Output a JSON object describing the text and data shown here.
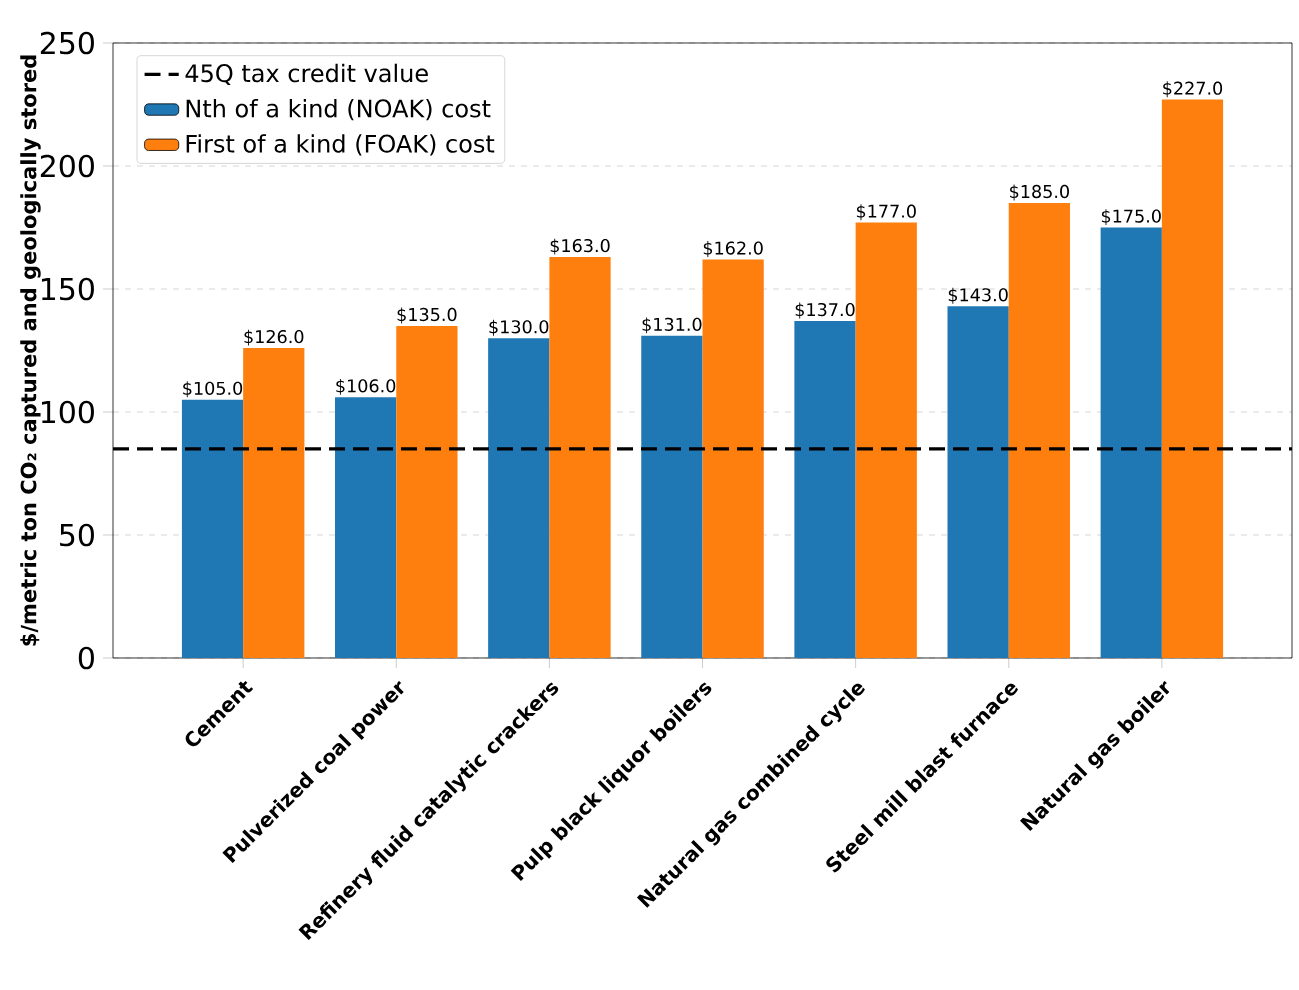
{
  "chart_data": {
    "type": "bar",
    "ylabel": "$/metric ton CO₂ captured and geologically stored",
    "categories": [
      "Cement",
      "Pulverized coal power",
      "Refinery fluid catalytic crackers",
      "Pulp black liquor boilers",
      "Natural gas combined cycle",
      "Steel mill blast furnace",
      "Natural gas boiler"
    ],
    "series": [
      {
        "name": "Nth of a kind (NOAK) cost",
        "color": "#1f77b4",
        "values": [
          105,
          106,
          130,
          131,
          137,
          143,
          175
        ],
        "value_labels": [
          "$105.0",
          "$106.0",
          "$130.0",
          "$131.0",
          "$137.0",
          "$143.0",
          "$175.0"
        ]
      },
      {
        "name": "First of a kind (FOAK) cost",
        "color": "#ff7f0e",
        "values": [
          126,
          135,
          163,
          162,
          177,
          185,
          227
        ],
        "value_labels": [
          "$126.0",
          "$135.0",
          "$163.0",
          "$162.0",
          "$177.0",
          "$185.0",
          "$227.0"
        ]
      }
    ],
    "ylim": [
      0,
      250
    ],
    "yticks": [
      0,
      50,
      100,
      150,
      200,
      250
    ],
    "grid": "y",
    "legend": "top left",
    "ref_lines": [
      {
        "axis": "y",
        "value": 85,
        "label": "45Q tax credit value",
        "color": "#000000",
        "line_style": "dashed"
      }
    ]
  }
}
